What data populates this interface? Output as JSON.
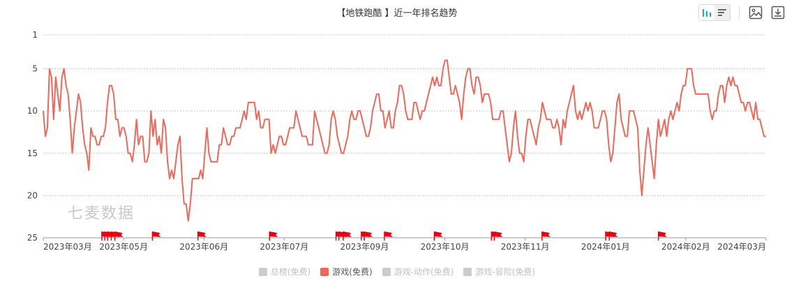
{
  "chart_data": {
    "type": "line",
    "title": "【地铁跑酷 】近一年排名趋势",
    "ylim": [
      1,
      25
    ],
    "y_inverted": true,
    "yticks": [
      1,
      5,
      10,
      15,
      20,
      25
    ],
    "x_ticks": [
      "2023年03月",
      "2023年05月",
      "2023年06月",
      "2023年07月",
      "2023年09月",
      "2023年10月",
      "2023年11月",
      "2024年01月",
      "2024年02月",
      "2024年03月"
    ],
    "grid": true,
    "line_color": "#f0675a",
    "flag_color": "#e60012",
    "series": [
      {
        "name": "游戏(免费)",
        "values": [
          10,
          13,
          12,
          5,
          6,
          11,
          6,
          8,
          10,
          6,
          5,
          7,
          8,
          11,
          15,
          12,
          10,
          8,
          9,
          12,
          14,
          15,
          17,
          12,
          13,
          13,
          14,
          14,
          13,
          13,
          12,
          9,
          7,
          7,
          8,
          11,
          11,
          13,
          12,
          12,
          13,
          15,
          15,
          16,
          14,
          11,
          14,
          13,
          13,
          16,
          16,
          15,
          10,
          13,
          11,
          14,
          13,
          15,
          11,
          12,
          16,
          18,
          17,
          18,
          16,
          14,
          13,
          18,
          21,
          21,
          23,
          21,
          18,
          18,
          18,
          18,
          17,
          18,
          15,
          12,
          15,
          16,
          16,
          16,
          16,
          14,
          14,
          12,
          13,
          14,
          14,
          13,
          13,
          12,
          12,
          12,
          11,
          10,
          11,
          9,
          9,
          9,
          9,
          11,
          10,
          12,
          12,
          11,
          11,
          11,
          15,
          14,
          15,
          14,
          13,
          13,
          14,
          14,
          13,
          12,
          12,
          12,
          10,
          11,
          12,
          13,
          13,
          13,
          14,
          14,
          14,
          10,
          11,
          12,
          13,
          14,
          15,
          15,
          14,
          11,
          10,
          11,
          13,
          14,
          15,
          15,
          14,
          13,
          11,
          10,
          11,
          11,
          10,
          10,
          11,
          12,
          13,
          13,
          12,
          10,
          9,
          8,
          8,
          10,
          10,
          12,
          11,
          10,
          12,
          12,
          10,
          9,
          7,
          7,
          8,
          10,
          11,
          11,
          11,
          9,
          9,
          10,
          11,
          10,
          10,
          9,
          8,
          7,
          6,
          7,
          6,
          7,
          7,
          5,
          4,
          4,
          6,
          8,
          8,
          7,
          8,
          9,
          11,
          8,
          6,
          5,
          5,
          7,
          8,
          6,
          6,
          7,
          9,
          8,
          8,
          8,
          9,
          11,
          11,
          11,
          11,
          10,
          10,
          12,
          14,
          16,
          15,
          12,
          10,
          13,
          15,
          15,
          16,
          13,
          11,
          11,
          12,
          13,
          14,
          12,
          11,
          9,
          10,
          11,
          11,
          11,
          12,
          12,
          11,
          12,
          14,
          11,
          12,
          10,
          9,
          8,
          7,
          10,
          11,
          10,
          11,
          10,
          9,
          10,
          9,
          10,
          12,
          12,
          12,
          11,
          10,
          10,
          11,
          14,
          16,
          15,
          12,
          9,
          8,
          11,
          12,
          13,
          13,
          10,
          10,
          10,
          11,
          12,
          17,
          20,
          17,
          14,
          12,
          14,
          16,
          18,
          14,
          11,
          13,
          12,
          11,
          13,
          11,
          10,
          11,
          10,
          9,
          10,
          8,
          7,
          7,
          5,
          5,
          5,
          7,
          8,
          8,
          8,
          8,
          8,
          8,
          8,
          10,
          11,
          10,
          10,
          8,
          7,
          7,
          9,
          7,
          6,
          7,
          6,
          7,
          7,
          8,
          9,
          9,
          10,
          9,
          9,
          10,
          11,
          9,
          11,
          11,
          12,
          13,
          13
        ]
      }
    ],
    "flag_positions": [
      0.081,
      0.085,
      0.089,
      0.094,
      0.099,
      0.151,
      0.214,
      0.313,
      0.405,
      0.409,
      0.415,
      0.44,
      0.444,
      0.472,
      0.541,
      0.62,
      0.624,
      0.69,
      0.778,
      0.783,
      0.851
    ]
  },
  "watermark": "七麦数据",
  "legend": [
    {
      "label": "总榜(免费)",
      "active": false
    },
    {
      "label": "游戏(免费)",
      "active": true
    },
    {
      "label": "游戏-动作(免费)",
      "active": false
    },
    {
      "label": "游戏-冒险(免费)",
      "active": false
    }
  ],
  "toolbar": {
    "icons": [
      "bar-chart-icon",
      "list-icon",
      "image-icon",
      "download-icon"
    ]
  }
}
